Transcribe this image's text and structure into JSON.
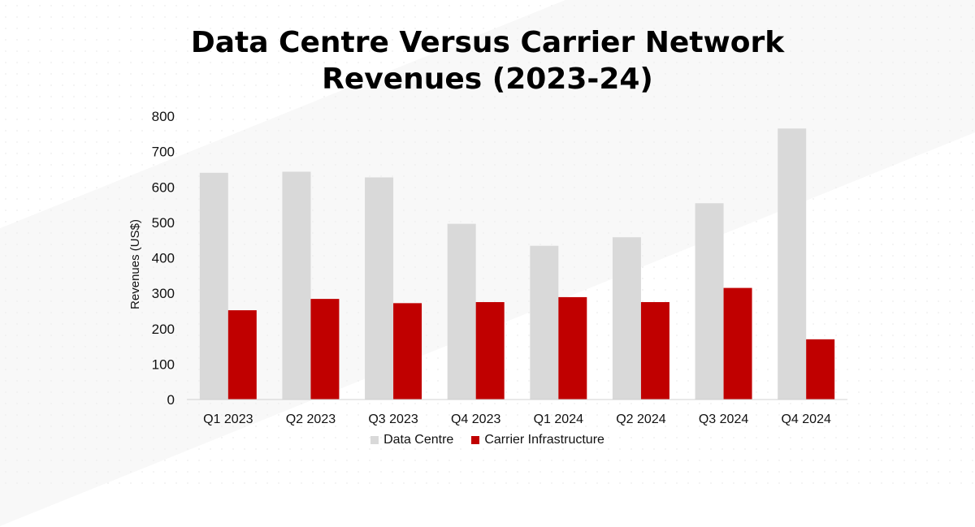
{
  "chart_data": {
    "type": "bar",
    "title_lines": [
      "Data Centre Versus Carrier Network",
      "Revenues (2023-24)"
    ],
    "xlabel": "",
    "ylabel": "Revenues (US$)",
    "ylim": [
      0,
      800
    ],
    "yticks": [
      "0",
      "100",
      "200",
      "300",
      "400",
      "500",
      "600",
      "700",
      "800"
    ],
    "categories": [
      "Q1 2023",
      "Q2 2023",
      "Q3 2023",
      "Q4 2023",
      "Q1 2024",
      "Q2 2024",
      "Q3 2024",
      "Q4 2024"
    ],
    "series": [
      {
        "name": "Data Centre",
        "color": "#d9d9d9",
        "values": [
          640,
          643,
          627,
          496,
          434,
          458,
          554,
          765
        ]
      },
      {
        "name": "Carrier Infrastructure",
        "color": "#c00000",
        "values": [
          252,
          284,
          272,
          275,
          289,
          275,
          315,
          170
        ]
      }
    ],
    "grid": false,
    "legend_position": "bottom"
  }
}
